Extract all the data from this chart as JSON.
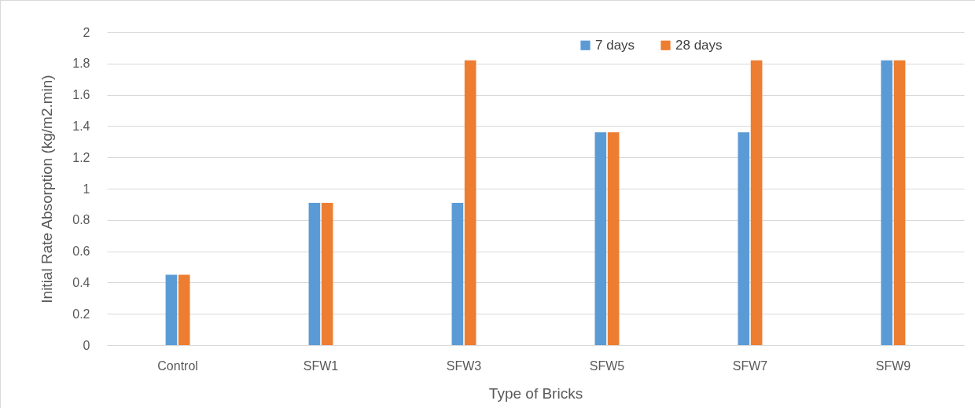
{
  "chart_data": {
    "type": "bar",
    "xlabel": "Type of Bricks",
    "ylabel": "Initial Rate Absorption (kg/m2.min)",
    "categories": [
      "Control",
      "SFW1",
      "SFW3",
      "SFW5",
      "SFW7",
      "SFW9"
    ],
    "series": [
      {
        "name": "7 days",
        "color": "#5b9bd5",
        "values": [
          0.45,
          0.91,
          0.91,
          1.36,
          1.36,
          1.82
        ]
      },
      {
        "name": "28 days",
        "color": "#ed7d31",
        "values": [
          0.45,
          0.91,
          1.82,
          1.36,
          1.82,
          1.82
        ]
      }
    ],
    "ylim": [
      0,
      2
    ],
    "yticks": [
      0,
      0.2,
      0.4,
      0.6,
      0.8,
      1,
      1.2,
      1.4,
      1.6,
      1.8,
      2
    ],
    "grid": "y",
    "legend": "top right"
  }
}
